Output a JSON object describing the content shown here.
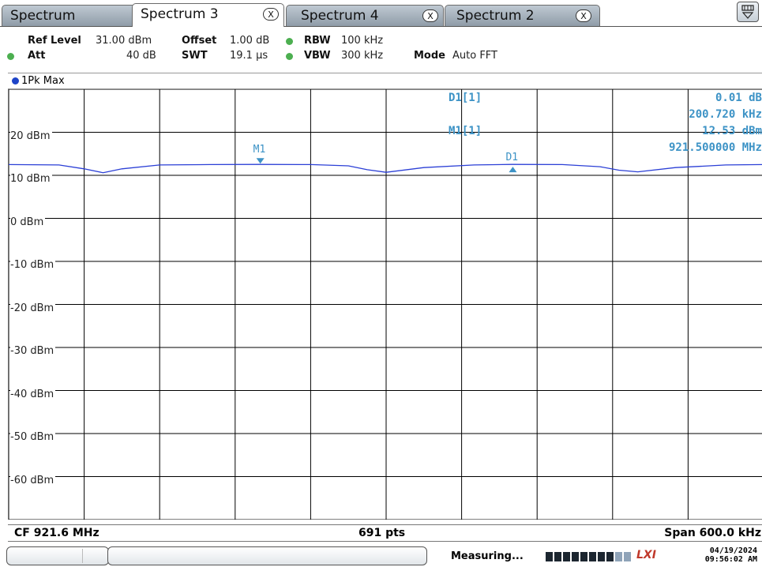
{
  "tabs": [
    {
      "label": "Spectrum",
      "active": false,
      "closable": false
    },
    {
      "label": "Spectrum 3",
      "active": true,
      "closable": true
    },
    {
      "label": "Spectrum 4",
      "active": false,
      "closable": true
    },
    {
      "label": "Spectrum 2",
      "active": false,
      "closable": true
    }
  ],
  "close_glyph": "X",
  "settings": {
    "ref_level_label": "Ref Level",
    "ref_level_value": "31.00 dBm",
    "offset_label": "Offset",
    "offset_value": "1.00 dB",
    "rbw_label": "RBW",
    "rbw_value": "100 kHz",
    "att_label": "Att",
    "att_value": "40 dB",
    "swt_label": "SWT",
    "swt_value": "19.1 µs",
    "vbw_label": "VBW",
    "vbw_value": "300 kHz",
    "mode_label": "Mode",
    "mode_value": "Auto FFT"
  },
  "trace_label": "1Pk Max",
  "y_labels": [
    "20 dBm",
    "10 dBm",
    "0 dBm",
    "-10 dBm",
    "-20 dBm",
    "-30 dBm",
    "-40 dBm",
    "-50 dBm",
    "-60 dBm"
  ],
  "markers": {
    "m1": "M1",
    "d1": "D1"
  },
  "readouts": {
    "d1_name": "D1[1]",
    "d1_value1": "0.01 dB",
    "d1_value2": "200.720 kHz",
    "m1_name": "M1[1]",
    "m1_value1": "12.53 dBm",
    "m1_value2": "921.500000 MHz"
  },
  "footer": {
    "cf": "CF 921.6 MHz",
    "pts": "691 pts",
    "span": "Span 600.0 kHz"
  },
  "status": {
    "measuring": "Measuring...",
    "lxi": "LXI",
    "date": "04/19/2024",
    "time": "09:56:02 AM",
    "progress_fraction": 0.8
  },
  "colors": {
    "trace": "#2b3fd6",
    "marker": "#3d93c6",
    "grid": "#000000",
    "tab_inactive": "#9aa7b3"
  },
  "chart_data": {
    "type": "line",
    "x_center_mhz": 921.6,
    "span_khz": 600.0,
    "points": 691,
    "ylim": [
      -70,
      30
    ],
    "yticks": [
      20,
      10,
      0,
      -10,
      -20,
      -30,
      -40,
      -50,
      -60
    ],
    "grid": true,
    "series": [
      {
        "x_mhz": [
          921.3,
          921.34,
          921.36,
          921.375,
          921.39,
          921.42,
          921.46,
          921.5,
          921.54,
          921.57,
          921.585,
          921.6,
          921.63,
          921.67,
          921.7,
          921.74,
          921.77,
          921.785,
          921.8,
          921.83,
          921.87,
          921.9
        ],
        "y_dbm": [
          12.5,
          12.4,
          11.5,
          10.6,
          11.5,
          12.4,
          12.5,
          12.53,
          12.5,
          12.2,
          11.3,
          10.7,
          11.8,
          12.4,
          12.54,
          12.5,
          12.0,
          11.2,
          10.8,
          11.8,
          12.4,
          12.5
        ]
      }
    ],
    "markers": [
      {
        "name": "M1",
        "x_mhz": 921.5,
        "y_dbm": 12.53
      },
      {
        "name": "D1",
        "x_mhz": 921.7007,
        "y_dbm": 12.54
      }
    ]
  }
}
